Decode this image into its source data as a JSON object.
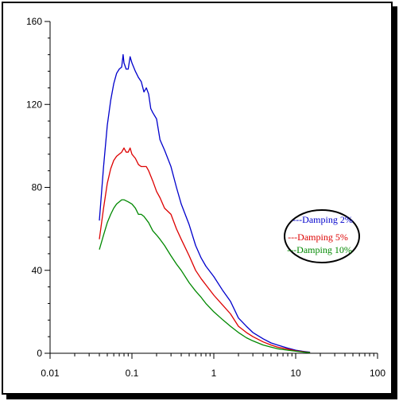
{
  "chart_data": {
    "type": "line",
    "x_scale": "log",
    "xlim": [
      0.01,
      100
    ],
    "ylim": [
      0,
      160
    ],
    "x_ticks": [
      "0.01",
      "0.1",
      "1",
      "10",
      "100"
    ],
    "y_ticks": [
      "0",
      "40",
      "80",
      "120",
      "160"
    ],
    "grid": false,
    "legend_position": "right",
    "series": [
      {
        "name": "---Damping 2%",
        "color": "#0000cc",
        "points": [
          [
            0.04,
            64
          ],
          [
            0.045,
            90
          ],
          [
            0.05,
            110
          ],
          [
            0.055,
            122
          ],
          [
            0.06,
            130
          ],
          [
            0.065,
            135
          ],
          [
            0.07,
            137
          ],
          [
            0.075,
            138
          ],
          [
            0.078,
            144
          ],
          [
            0.08,
            140
          ],
          [
            0.085,
            137
          ],
          [
            0.09,
            137
          ],
          [
            0.095,
            143
          ],
          [
            0.1,
            140
          ],
          [
            0.11,
            136
          ],
          [
            0.12,
            133
          ],
          [
            0.13,
            131
          ],
          [
            0.14,
            126
          ],
          [
            0.15,
            128
          ],
          [
            0.16,
            125
          ],
          [
            0.17,
            118
          ],
          [
            0.18,
            116
          ],
          [
            0.2,
            113
          ],
          [
            0.22,
            103
          ],
          [
            0.25,
            98
          ],
          [
            0.3,
            90
          ],
          [
            0.35,
            80
          ],
          [
            0.4,
            72
          ],
          [
            0.5,
            62
          ],
          [
            0.6,
            52
          ],
          [
            0.7,
            46
          ],
          [
            0.8,
            42
          ],
          [
            1.0,
            37
          ],
          [
            1.3,
            30
          ],
          [
            1.6,
            25
          ],
          [
            2.0,
            17
          ],
          [
            2.5,
            13
          ],
          [
            3.0,
            10
          ],
          [
            4.0,
            7
          ],
          [
            5.0,
            5
          ],
          [
            6.0,
            4
          ],
          [
            8.0,
            2.5
          ],
          [
            10,
            1.5
          ],
          [
            12,
            1
          ],
          [
            15,
            0.5
          ]
        ]
      },
      {
        "name": "---Damping 5%",
        "color": "#dd0000",
        "points": [
          [
            0.04,
            55
          ],
          [
            0.045,
            70
          ],
          [
            0.05,
            82
          ],
          [
            0.055,
            89
          ],
          [
            0.06,
            93
          ],
          [
            0.065,
            95
          ],
          [
            0.07,
            96
          ],
          [
            0.075,
            97
          ],
          [
            0.08,
            99
          ],
          [
            0.085,
            97
          ],
          [
            0.09,
            97
          ],
          [
            0.095,
            99
          ],
          [
            0.1,
            96
          ],
          [
            0.11,
            94
          ],
          [
            0.12,
            91
          ],
          [
            0.13,
            90
          ],
          [
            0.15,
            90
          ],
          [
            0.16,
            88
          ],
          [
            0.18,
            83
          ],
          [
            0.2,
            78
          ],
          [
            0.22,
            75
          ],
          [
            0.25,
            70
          ],
          [
            0.3,
            67
          ],
          [
            0.35,
            60
          ],
          [
            0.4,
            55
          ],
          [
            0.5,
            47
          ],
          [
            0.6,
            40
          ],
          [
            0.7,
            36
          ],
          [
            0.8,
            33
          ],
          [
            1.0,
            28
          ],
          [
            1.3,
            23
          ],
          [
            1.6,
            19
          ],
          [
            2.0,
            13
          ],
          [
            2.5,
            10
          ],
          [
            3.0,
            8
          ],
          [
            4.0,
            5.5
          ],
          [
            5.0,
            4
          ],
          [
            6.0,
            3
          ],
          [
            8.0,
            2
          ],
          [
            10,
            1.2
          ],
          [
            12,
            0.8
          ],
          [
            15,
            0.4
          ]
        ]
      },
      {
        "name": "---Damping 10%",
        "color": "#008800",
        "points": [
          [
            0.04,
            50
          ],
          [
            0.045,
            57
          ],
          [
            0.05,
            63
          ],
          [
            0.055,
            67
          ],
          [
            0.06,
            70
          ],
          [
            0.065,
            72
          ],
          [
            0.07,
            73
          ],
          [
            0.075,
            74
          ],
          [
            0.08,
            74
          ],
          [
            0.09,
            73
          ],
          [
            0.1,
            72
          ],
          [
            0.11,
            70
          ],
          [
            0.12,
            67
          ],
          [
            0.13,
            67
          ],
          [
            0.14,
            66
          ],
          [
            0.16,
            63
          ],
          [
            0.18,
            59
          ],
          [
            0.2,
            57
          ],
          [
            0.22,
            55
          ],
          [
            0.25,
            52
          ],
          [
            0.3,
            47
          ],
          [
            0.35,
            43
          ],
          [
            0.4,
            40
          ],
          [
            0.5,
            34
          ],
          [
            0.6,
            30
          ],
          [
            0.7,
            27
          ],
          [
            0.8,
            24
          ],
          [
            1.0,
            20
          ],
          [
            1.3,
            16
          ],
          [
            1.6,
            13
          ],
          [
            2.0,
            10
          ],
          [
            2.5,
            7.5
          ],
          [
            3.0,
            6
          ],
          [
            4.0,
            4
          ],
          [
            5.0,
            3
          ],
          [
            6.0,
            2.2
          ],
          [
            8.0,
            1.5
          ],
          [
            10,
            1
          ],
          [
            12,
            0.6
          ],
          [
            15,
            0.3
          ]
        ]
      }
    ]
  }
}
